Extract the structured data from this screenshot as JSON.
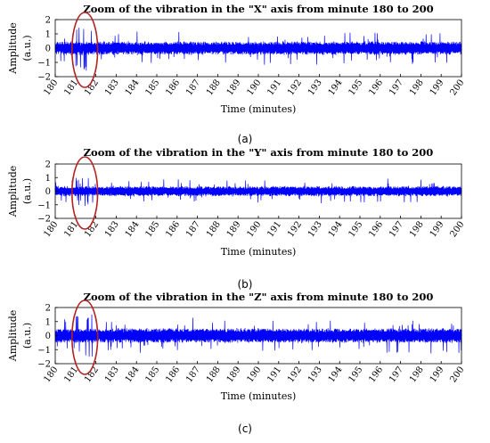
{
  "chart_data": [
    {
      "type": "line",
      "title": "Zoom of the vibration in the \"X\" axis from minute 180 to 200",
      "xlabel": "Time (minutes)",
      "ylabel": "Amplitude",
      "ylabel_unit": "(a.u.)",
      "xlim": [
        180,
        200
      ],
      "ylim": [
        -2,
        2
      ],
      "xticks": [
        180,
        181,
        182,
        183,
        184,
        185,
        186,
        187,
        188,
        189,
        190,
        191,
        192,
        193,
        194,
        195,
        196,
        197,
        198,
        199,
        200
      ],
      "yticks": [
        2,
        1,
        0,
        -1,
        -2
      ],
      "series": [
        {
          "color": "#0000ff",
          "typical_amplitude": 0.45,
          "peak_amplitude": 1.6
        }
      ],
      "annotation": {
        "shape": "ellipse",
        "color": "#b22222",
        "x_range": [
          181,
          182
        ],
        "y_range": [
          -2,
          2
        ]
      },
      "caption": "(a)"
    },
    {
      "type": "line",
      "title": "Zoom of the vibration in the \"Y\" axis from minute 180 to 200",
      "xlabel": "Time (minutes)",
      "ylabel": "Amplitude",
      "ylabel_unit": "(a.u.)",
      "xlim": [
        180,
        200
      ],
      "ylim": [
        -2,
        2
      ],
      "xticks": [
        180,
        181,
        182,
        183,
        184,
        185,
        186,
        187,
        188,
        189,
        190,
        191,
        192,
        193,
        194,
        195,
        196,
        197,
        198,
        199,
        200
      ],
      "yticks": [
        2,
        1,
        0,
        -1,
        -2
      ],
      "series": [
        {
          "color": "#0000ff",
          "typical_amplitude": 0.35,
          "peak_amplitude": 1.2
        }
      ],
      "annotation": {
        "shape": "ellipse",
        "color": "#b22222",
        "x_range": [
          181,
          182
        ],
        "y_range": [
          -2,
          2
        ]
      },
      "caption": "(b)"
    },
    {
      "type": "line",
      "title": "Zoom of the vibration in the \"Z\" axis from minute 180 to 200",
      "xlabel": "Time (minutes)",
      "ylabel": "Amplitude",
      "ylabel_unit": "(a.u.)",
      "xlim": [
        180,
        200
      ],
      "ylim": [
        -2,
        2
      ],
      "xticks": [
        180,
        181,
        182,
        183,
        184,
        185,
        186,
        187,
        188,
        189,
        190,
        191,
        192,
        193,
        194,
        195,
        196,
        197,
        198,
        199,
        200
      ],
      "yticks": [
        2,
        1,
        0,
        -1,
        -2
      ],
      "series": [
        {
          "color": "#0000ff",
          "typical_amplitude": 0.5,
          "peak_amplitude": 1.5
        }
      ],
      "annotation": {
        "shape": "ellipse",
        "color": "#b22222",
        "x_range": [
          181,
          182
        ],
        "y_range": [
          -2,
          2
        ]
      },
      "caption": "(c)"
    }
  ]
}
